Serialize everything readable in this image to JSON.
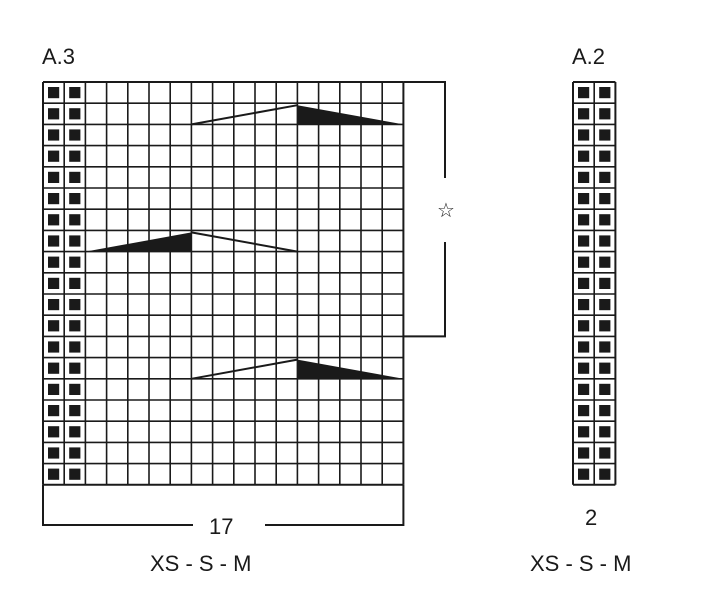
{
  "charts": [
    {
      "title": "A.3",
      "columns": 17,
      "rows": 19,
      "edge_stitch_columns": 2,
      "width_label": "17",
      "sizes": "XS - S - M",
      "repeat_marker": "☆",
      "repeat_rows_from_top": [
        1,
        12
      ]
    },
    {
      "title": "A.2",
      "columns": 2,
      "rows": 19,
      "width_label": "2",
      "sizes": "XS - S - M"
    }
  ],
  "colors": {
    "ink": "#1a1a1a",
    "background": "#ffffff"
  }
}
